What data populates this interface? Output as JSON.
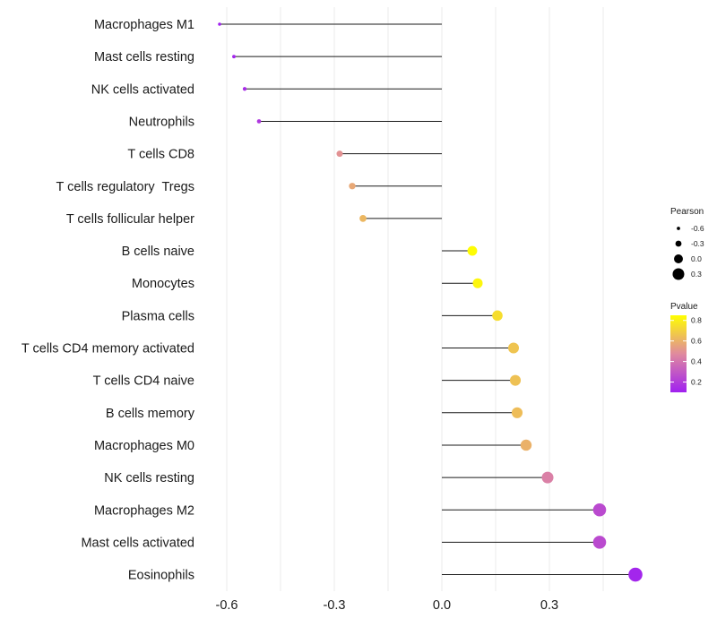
{
  "chart_data": {
    "type": "lollipop",
    "title": "",
    "xlabel": "",
    "ylabel": "",
    "xlim": [
      -0.63,
      0.56
    ],
    "x_ticks": [
      -0.6,
      -0.3,
      0.0,
      0.3
    ],
    "x_tick_labels": [
      "-0.6",
      "-0.3",
      "0.0",
      "0.3"
    ],
    "grid": true,
    "categories": [
      "Macrophages M1",
      "Mast cells resting",
      "NK cells activated",
      "Neutrophils",
      "T cells CD8",
      "T cells regulatory  Tregs",
      "T cells follicular helper",
      "B cells naive",
      "Monocytes",
      "Plasma cells",
      "T cells CD4 memory activated",
      "T cells CD4 naive",
      "B cells memory",
      "Macrophages M0",
      "NK cells resting",
      "Macrophages M2",
      "Mast cells activated",
      "Eosinophils"
    ],
    "pearson": [
      -0.62,
      -0.58,
      -0.55,
      -0.51,
      -0.285,
      -0.25,
      -0.22,
      0.085,
      0.1,
      0.155,
      0.2,
      0.205,
      0.21,
      0.235,
      0.295,
      0.44,
      0.44,
      0.54
    ],
    "pvalue": [
      0.08,
      0.12,
      0.14,
      0.18,
      0.5,
      0.57,
      0.62,
      0.84,
      0.82,
      0.74,
      0.66,
      0.65,
      0.64,
      0.6,
      0.44,
      0.25,
      0.25,
      0.12
    ],
    "size_legend": {
      "title": "Pearson",
      "values": [
        -0.6,
        -0.3,
        0.0,
        0.3
      ],
      "labels": [
        "-0.6",
        "-0.3",
        "0.0",
        "0.3"
      ]
    },
    "color_legend": {
      "title": "Pvalue",
      "range": [
        0.1,
        0.85
      ],
      "ticks": [
        0.2,
        0.4,
        0.6,
        0.8
      ],
      "tick_labels": [
        "0.2",
        "0.4",
        "0.6",
        "0.8"
      ],
      "low_color": "#a020f0",
      "mid_color": "#e08a9e",
      "high_color": "#ffff00"
    }
  }
}
